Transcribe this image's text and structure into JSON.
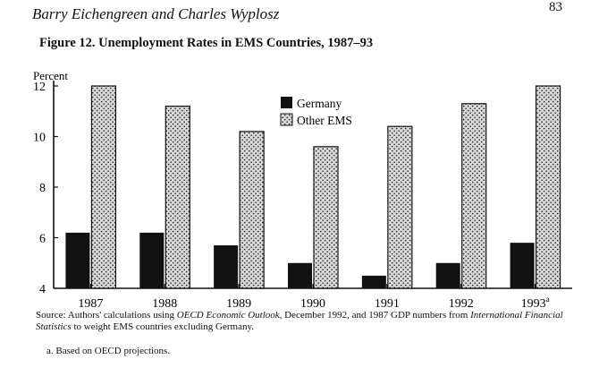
{
  "running_head": "Barry Eichengreen and Charles Wyplosz",
  "page_number": "83",
  "figure_title": "Figure 12.  Unemployment Rates in EMS Countries, 1987–93",
  "source_note": {
    "prefix": "Source:  Authors' calculations using ",
    "italic1": "OECD Economic Outlook,",
    "middle": " December 1992, and 1987 GDP numbers from ",
    "italic2": "International Financial Statistics",
    "suffix": " to weight EMS countries excluding Germany."
  },
  "footnote": "a.  Based on OECD projections.",
  "colors": {
    "germany": "#111111",
    "other_ems_bg": "#d8d8d8",
    "other_ems_dots": "#222222",
    "axis": "#111111"
  },
  "chart_data": {
    "type": "bar",
    "title": "Figure 12.  Unemployment Rates in EMS Countries, 1987–93",
    "ylabel": "Percent",
    "xlabel": "",
    "categories": [
      "1987",
      "1988",
      "1989",
      "1990",
      "1991",
      "1992",
      "1993"
    ],
    "category_superscripts": [
      "",
      "",
      "",
      "",
      "",
      "",
      "a"
    ],
    "ylim": [
      4,
      12
    ],
    "yticks": [
      4,
      6,
      8,
      10,
      12
    ],
    "series": [
      {
        "name": "Germany",
        "values": [
          6.2,
          6.2,
          5.7,
          5.0,
          4.5,
          5.0,
          5.8
        ]
      },
      {
        "name": "Other EMS",
        "values": [
          12.0,
          11.2,
          10.2,
          9.6,
          10.4,
          11.3,
          12.0
        ]
      }
    ],
    "legend": "top-center",
    "grid": false
  }
}
